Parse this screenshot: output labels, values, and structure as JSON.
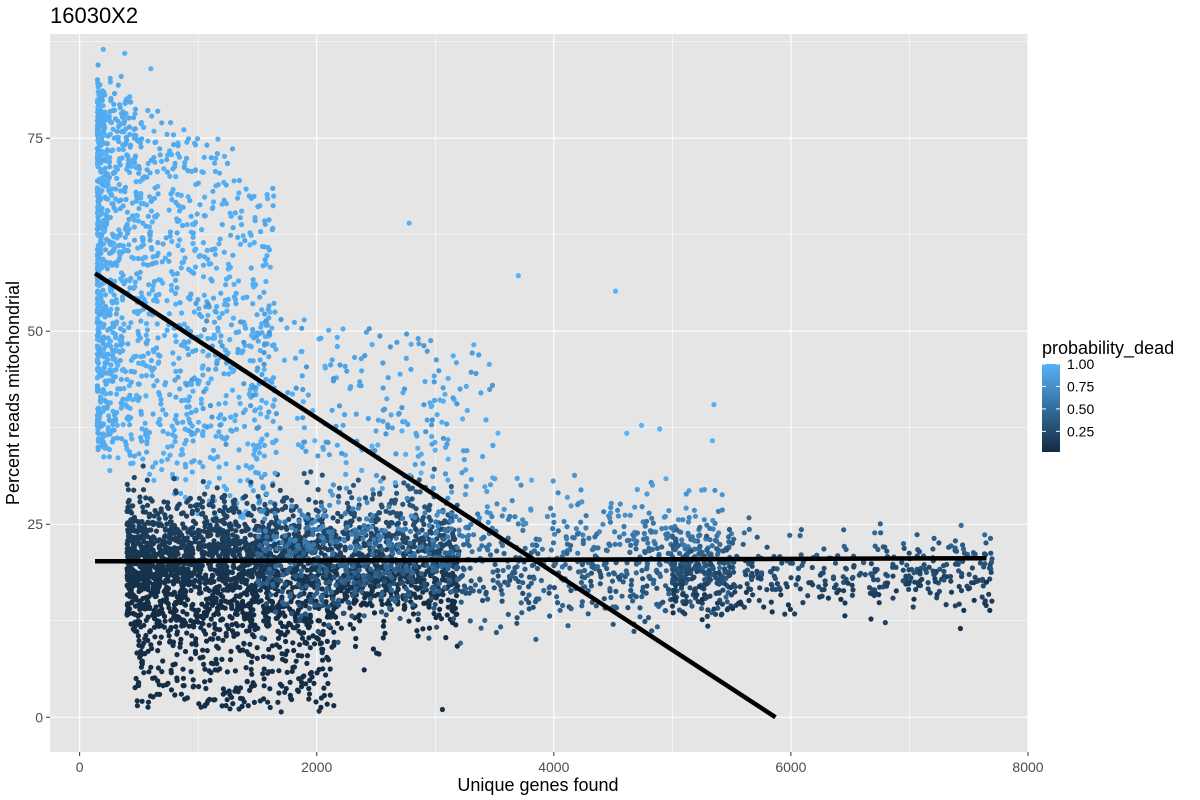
{
  "chart_data": {
    "type": "scatter",
    "title": "16030X2",
    "xlabel": "Unique genes found",
    "ylabel": "Percent reads mitochondrial",
    "xlim": [
      -250,
      8000
    ],
    "ylim": [
      -4.5,
      88.5
    ],
    "x_ticks": [
      0,
      2000,
      4000,
      6000,
      8000
    ],
    "y_ticks": [
      0,
      25,
      50,
      75
    ],
    "grid": true,
    "panel_background": "#E5E5E5",
    "legend": {
      "title": "probability_dead",
      "position": "right",
      "labels": [
        "1.00",
        "0.75",
        "0.50",
        "0.25"
      ],
      "values": [
        1.0,
        0.75,
        0.5,
        0.25
      ],
      "color_low": "#132B43",
      "color_high": "#56B1F7"
    },
    "point_count_estimate": 5200,
    "clusters": [
      {
        "description": "high-mito dying cells",
        "x_range": [
          150,
          1600
        ],
        "y_range": [
          36,
          87
        ],
        "probability_dead": 1.0
      },
      {
        "description": "dense healthy core",
        "x_range": [
          400,
          3200
        ],
        "y_range": [
          0.5,
          34
        ],
        "probability_dead": 0.05
      },
      {
        "description": "mid-range cells",
        "x_range": [
          1500,
          5500
        ],
        "y_range": [
          10,
          38
        ],
        "probability_dead": 0.45
      },
      {
        "description": "high-gene tail",
        "x_range": [
          5000,
          7700
        ],
        "y_range": [
          10,
          28
        ],
        "probability_dead": 0.2
      }
    ],
    "notable_points": [
      {
        "x": 200,
        "y": 86.5
      },
      {
        "x": 380,
        "y": 86
      },
      {
        "x": 600,
        "y": 84
      },
      {
        "x": 2780,
        "y": 64
      },
      {
        "x": 3700,
        "y": 57.2
      },
      {
        "x": 4520,
        "y": 55.2
      },
      {
        "x": 5350,
        "y": 40.5
      },
      {
        "x": 7650,
        "y": 17.5
      },
      {
        "x": 7430,
        "y": 11.5
      },
      {
        "x": 3060,
        "y": 1
      },
      {
        "x": 2020,
        "y": 0.8
      },
      {
        "x": 1700,
        "y": 0.7
      }
    ],
    "fit_lines": [
      {
        "name": "",
        "x": [
          130,
          5870
        ],
        "y": [
          57.5,
          0
        ],
        "color": "#000000"
      },
      {
        "name": "",
        "x": [
          130,
          7650
        ],
        "y": [
          20.2,
          20.6
        ],
        "color": "#000000"
      }
    ]
  }
}
